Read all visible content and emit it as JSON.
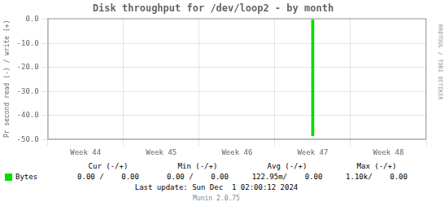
{
  "chart_data": {
    "type": "bar",
    "title": "Disk throughput for /dev/loop2 - by month",
    "ylabel": "Pr second read (-) / write (+)",
    "categories": [
      "Week 44",
      "Week 45",
      "Week 46",
      "Week 47",
      "Week 48"
    ],
    "series": [
      {
        "name": "Bytes",
        "color": "#00dd00",
        "values": [
          null,
          null,
          null,
          -48.5,
          null
        ]
      }
    ],
    "ylim": [
      -50,
      0.5
    ],
    "yticks": [
      {
        "value": 0.0,
        "label": "0.0"
      },
      {
        "value": -10.0,
        "label": "-10.0"
      },
      {
        "value": -20.0,
        "label": "-20.0"
      },
      {
        "value": -30.0,
        "label": "-30.0"
      },
      {
        "value": -40.0,
        "label": "-40.0"
      },
      {
        "value": -50.0,
        "label": "-50.0"
      }
    ],
    "grid": true,
    "annotations": {
      "headers": [
        "Cur (-/+)",
        "Min (-/+)",
        "Avg (-/+)",
        "Max (-/+)"
      ],
      "rows": [
        {
          "values": [
            "0.00 /    0.00",
            "0.00 /    0.00",
            "122.95m/    0.00",
            "1.10k/    0.00"
          ]
        }
      ],
      "notes": [
        "Last update: Sun Dec  1 02:00:12 2024",
        "RRDTOOL / TOBI OETIKER",
        "Munin 2.0.75"
      ]
    }
  }
}
